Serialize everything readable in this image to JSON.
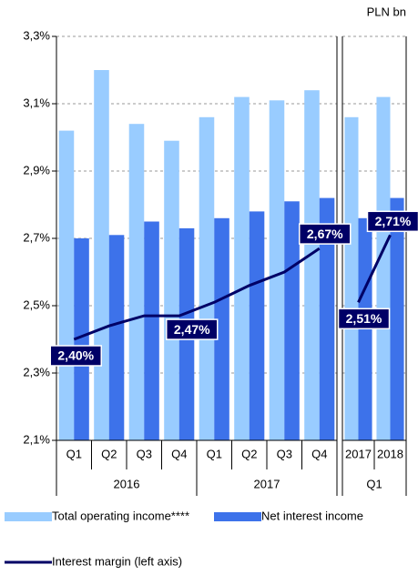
{
  "chart_data": {
    "type": "bar",
    "y2_label": "PLN bn",
    "panels": [
      {
        "groups": [
          {
            "label": "2016",
            "categories": [
              "Q1",
              "Q2",
              "Q3",
              "Q4"
            ]
          },
          {
            "label": "2017",
            "categories": [
              "Q1",
              "Q2",
              "Q3",
              "Q4"
            ]
          }
        ]
      },
      {
        "groups": [
          {
            "label": "Q1",
            "categories": [
              "2017",
              "2018"
            ]
          }
        ]
      }
    ],
    "ylim": [
      2.1,
      3.3
    ],
    "yticks": [
      {
        "value": 2.1,
        "label": "2,1%"
      },
      {
        "value": 2.3,
        "label": "2,3%"
      },
      {
        "value": 2.5,
        "label": "2,5%"
      },
      {
        "value": 2.7,
        "label": "2,7%"
      },
      {
        "value": 2.9,
        "label": "2,9%"
      },
      {
        "value": 3.1,
        "label": "3,1%"
      },
      {
        "value": 3.3,
        "label": "3,3%"
      }
    ],
    "grid": true,
    "series": [
      {
        "name": "Total operating income****",
        "type": "bar",
        "color": "#99ccff",
        "values": [
          3.02,
          3.2,
          3.04,
          2.99,
          3.06,
          3.12,
          3.11,
          3.14,
          3.06,
          3.12
        ]
      },
      {
        "name": "Net interest income",
        "type": "bar",
        "color": "#3d72ea",
        "values": [
          2.7,
          2.71,
          2.75,
          2.73,
          2.76,
          2.78,
          2.81,
          2.82,
          2.76,
          2.82
        ]
      },
      {
        "name": "Interest margin (left axis)",
        "type": "line",
        "color": "#000066",
        "values": [
          2.4,
          2.44,
          2.47,
          2.47,
          2.51,
          2.56,
          2.6,
          2.67,
          2.51,
          2.71
        ],
        "value_labels": [
          "2,40%",
          null,
          null,
          "2,47%",
          null,
          null,
          null,
          "2,67%",
          "2,51%",
          "2,71%"
        ]
      }
    ]
  }
}
